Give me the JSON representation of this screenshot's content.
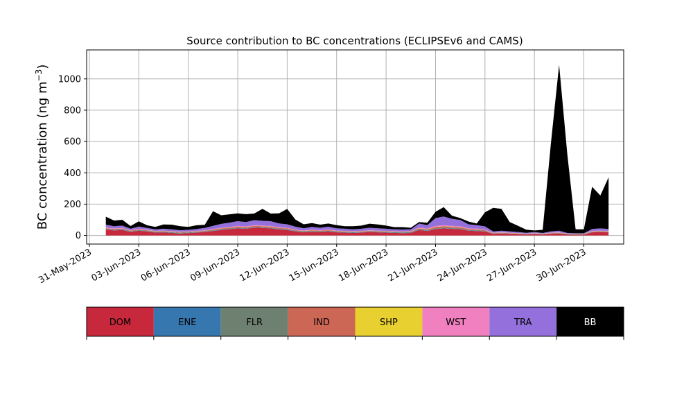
{
  "chart_data": {
    "type": "area",
    "stacked": true,
    "title": "Source contribution to BC concentrations (ECLIPSEv6 and CAMS)",
    "ylabel": "BC concentration (ng m",
    "ylabel_sup": "−3",
    "ylabel_close": ")",
    "xlabel": "",
    "xlim": [
      "2023-05-30T20:00",
      "2023-07-02T10:00"
    ],
    "ylim": [
      -55,
      1185
    ],
    "grid": true,
    "x_ticks": [
      {
        "date": "2023-05-31",
        "label": "31-May-2023"
      },
      {
        "date": "2023-06-03",
        "label": "03-Jun-2023"
      },
      {
        "date": "2023-06-06",
        "label": "06-Jun-2023"
      },
      {
        "date": "2023-06-09",
        "label": "09-Jun-2023"
      },
      {
        "date": "2023-06-12",
        "label": "12-Jun-2023"
      },
      {
        "date": "2023-06-15",
        "label": "15-Jun-2023"
      },
      {
        "date": "2023-06-18",
        "label": "18-Jun-2023"
      },
      {
        "date": "2023-06-21",
        "label": "21-Jun-2023"
      },
      {
        "date": "2023-06-24",
        "label": "24-Jun-2023"
      },
      {
        "date": "2023-06-27",
        "label": "27-Jun-2023"
      },
      {
        "date": "2023-06-30",
        "label": "30-Jun-2023"
      }
    ],
    "y_ticks": [
      0,
      200,
      400,
      600,
      800,
      1000
    ],
    "x": [
      "2023-06-01T00:00",
      "2023-06-01T12:00",
      "2023-06-02T00:00",
      "2023-06-02T12:00",
      "2023-06-03T00:00",
      "2023-06-03T12:00",
      "2023-06-04T00:00",
      "2023-06-04T12:00",
      "2023-06-05T00:00",
      "2023-06-05T12:00",
      "2023-06-06T00:00",
      "2023-06-06T12:00",
      "2023-06-07T00:00",
      "2023-06-07T12:00",
      "2023-06-08T00:00",
      "2023-06-08T12:00",
      "2023-06-09T00:00",
      "2023-06-09T12:00",
      "2023-06-10T00:00",
      "2023-06-10T12:00",
      "2023-06-11T00:00",
      "2023-06-11T12:00",
      "2023-06-12T00:00",
      "2023-06-12T12:00",
      "2023-06-13T00:00",
      "2023-06-13T12:00",
      "2023-06-14T00:00",
      "2023-06-14T12:00",
      "2023-06-15T00:00",
      "2023-06-15T12:00",
      "2023-06-16T00:00",
      "2023-06-16T12:00",
      "2023-06-17T00:00",
      "2023-06-17T12:00",
      "2023-06-18T00:00",
      "2023-06-18T12:00",
      "2023-06-19T00:00",
      "2023-06-19T12:00",
      "2023-06-20T00:00",
      "2023-06-20T12:00",
      "2023-06-21T00:00",
      "2023-06-21T12:00",
      "2023-06-22T00:00",
      "2023-06-22T12:00",
      "2023-06-23T00:00",
      "2023-06-23T12:00",
      "2023-06-24T00:00",
      "2023-06-24T12:00",
      "2023-06-25T00:00",
      "2023-06-25T12:00",
      "2023-06-26T00:00",
      "2023-06-26T12:00",
      "2023-06-27T00:00",
      "2023-06-27T12:00",
      "2023-06-28T00:00",
      "2023-06-28T12:00",
      "2023-06-29T00:00",
      "2023-06-29T12:00",
      "2023-06-30T00:00",
      "2023-06-30T12:00",
      "2023-07-01T00:00",
      "2023-07-01T12:00"
    ],
    "series": [
      {
        "name": "DOM",
        "color": "#c8283c",
        "values": [
          38,
          32,
          35,
          22,
          30,
          25,
          18,
          20,
          16,
          12,
          15,
          18,
          22,
          28,
          35,
          40,
          45,
          42,
          50,
          48,
          45,
          38,
          35,
          25,
          20,
          24,
          22,
          25,
          20,
          18,
          16,
          18,
          22,
          20,
          18,
          16,
          15,
          16,
          35,
          28,
          40,
          45,
          42,
          40,
          30,
          28,
          25,
          10,
          12,
          10,
          8,
          6,
          8,
          6,
          10,
          12,
          6,
          5,
          5,
          20,
          22,
          20
        ]
      },
      {
        "name": "ENE",
        "color": "#3777b0",
        "values": [
          2,
          2,
          2,
          2,
          2,
          2,
          2,
          2,
          2,
          2,
          2,
          2,
          2,
          2,
          2,
          2,
          2,
          2,
          2,
          2,
          2,
          2,
          2,
          2,
          2,
          2,
          2,
          2,
          2,
          2,
          2,
          2,
          2,
          2,
          2,
          2,
          2,
          2,
          2,
          2,
          2,
          2,
          2,
          2,
          2,
          2,
          2,
          1,
          1,
          1,
          1,
          1,
          1,
          1,
          1,
          1,
          1,
          1,
          1,
          1,
          1,
          1
        ]
      },
      {
        "name": "FLR",
        "color": "#6e8070",
        "values": [
          3,
          3,
          3,
          3,
          3,
          3,
          3,
          3,
          3,
          3,
          3,
          3,
          3,
          3,
          3,
          3,
          3,
          3,
          3,
          3,
          3,
          3,
          3,
          3,
          3,
          3,
          3,
          3,
          3,
          3,
          3,
          3,
          3,
          3,
          3,
          3,
          3,
          3,
          4,
          4,
          4,
          4,
          4,
          4,
          4,
          4,
          3,
          2,
          2,
          2,
          2,
          2,
          2,
          2,
          2,
          2,
          2,
          2,
          2,
          2,
          2,
          2
        ]
      },
      {
        "name": "IND",
        "color": "#cc6655",
        "values": [
          4,
          4,
          4,
          3,
          4,
          3,
          3,
          3,
          3,
          3,
          3,
          3,
          3,
          4,
          5,
          5,
          6,
          6,
          6,
          6,
          6,
          5,
          5,
          4,
          3,
          4,
          3,
          4,
          3,
          3,
          3,
          3,
          3,
          3,
          3,
          3,
          3,
          3,
          5,
          5,
          8,
          8,
          7,
          7,
          5,
          5,
          4,
          2,
          2,
          2,
          2,
          1,
          2,
          1,
          2,
          2,
          1,
          1,
          1,
          3,
          3,
          3
        ]
      },
      {
        "name": "SHP",
        "color": "#e8d030",
        "values": [
          1,
          1,
          1,
          1,
          1,
          1,
          1,
          1,
          1,
          1,
          1,
          1,
          1,
          1,
          1,
          1,
          1,
          1,
          1,
          1,
          1,
          1,
          1,
          1,
          1,
          1,
          1,
          1,
          1,
          1,
          1,
          1,
          1,
          1,
          1,
          1,
          1,
          1,
          1,
          1,
          1,
          1,
          1,
          1,
          1,
          1,
          1,
          1,
          1,
          1,
          1,
          1,
          1,
          1,
          1,
          1,
          1,
          1,
          1,
          1,
          1,
          1
        ]
      },
      {
        "name": "WST",
        "color": "#f080c0",
        "values": [
          3,
          3,
          3,
          2,
          3,
          2,
          2,
          2,
          2,
          2,
          2,
          2,
          2,
          3,
          3,
          3,
          4,
          4,
          4,
          4,
          4,
          3,
          3,
          3,
          2,
          3,
          2,
          3,
          2,
          2,
          2,
          2,
          2,
          2,
          2,
          2,
          2,
          2,
          4,
          4,
          6,
          6,
          5,
          5,
          4,
          4,
          3,
          2,
          2,
          2,
          2,
          1,
          2,
          1,
          2,
          2,
          1,
          1,
          1,
          2,
          2,
          2
        ]
      },
      {
        "name": "TRA",
        "color": "#9370db",
        "values": [
          18,
          14,
          15,
          10,
          14,
          12,
          10,
          12,
          12,
          10,
          10,
          12,
          15,
          20,
          25,
          28,
          30,
          28,
          32,
          30,
          30,
          25,
          22,
          18,
          15,
          18,
          16,
          18,
          15,
          14,
          12,
          14,
          16,
          15,
          14,
          12,
          12,
          12,
          25,
          22,
          50,
          55,
          45,
          40,
          25,
          22,
          20,
          8,
          10,
          8,
          6,
          5,
          6,
          4,
          8,
          10,
          4,
          3,
          3,
          12,
          14,
          12
        ]
      },
      {
        "name": "BB",
        "color": "#000000",
        "values": [
          51,
          36,
          37,
          17,
          33,
          17,
          16,
          27,
          30,
          26,
          19,
          24,
          20,
          94,
          55,
          53,
          50,
          50,
          42,
          76,
          49,
          64,
          98,
          45,
          25,
          24,
          20,
          20,
          20,
          16,
          20,
          20,
          26,
          24,
          20,
          14,
          15,
          10,
          10,
          15,
          40,
          60,
          20,
          12,
          18,
          10,
          90,
          150,
          140,
          60,
          40,
          20,
          10,
          20,
          560,
          1060,
          500,
          25,
          25,
          270,
          210,
          330
        ]
      }
    ]
  }
}
